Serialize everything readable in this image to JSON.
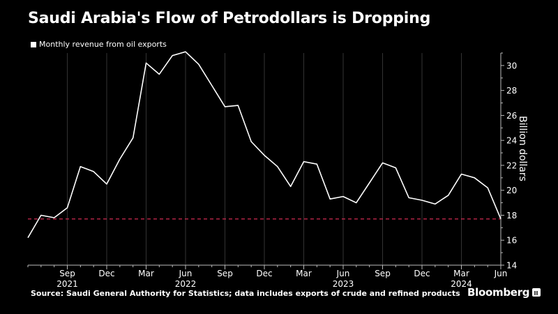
{
  "title": "Saudi Arabia's Flow of Petrodollars is Dropping",
  "legend": {
    "label": "Monthly revenue from oil exports",
    "color": "#ffffff"
  },
  "footer": {
    "source": "Source: Saudi General Authority for Statistics; data includes exports of crude and refined products",
    "brand": "Bloomberg"
  },
  "chart_data": {
    "type": "line",
    "ylabel": "Billion dollars",
    "ylim": [
      14,
      31
    ],
    "yticks": [
      14,
      16,
      18,
      20,
      22,
      24,
      26,
      28,
      30
    ],
    "y_axis_side": "right",
    "grid": "vertical",
    "x_start": "2021-06",
    "x_end": "2024-06",
    "xticks": [
      {
        "label": "Sep",
        "year": "2021",
        "date": "2021-09"
      },
      {
        "label": "Dec",
        "year": "",
        "date": "2021-12"
      },
      {
        "label": "Mar",
        "year": "",
        "date": "2022-03"
      },
      {
        "label": "Jun",
        "year": "2022",
        "date": "2022-06"
      },
      {
        "label": "Sep",
        "year": "",
        "date": "2022-09"
      },
      {
        "label": "Dec",
        "year": "",
        "date": "2022-12"
      },
      {
        "label": "Mar",
        "year": "",
        "date": "2023-03"
      },
      {
        "label": "Jun",
        "year": "2023",
        "date": "2023-06"
      },
      {
        "label": "Sep",
        "year": "",
        "date": "2023-09"
      },
      {
        "label": "Dec",
        "year": "",
        "date": "2023-12"
      },
      {
        "label": "Mar",
        "year": "2024",
        "date": "2024-03"
      },
      {
        "label": "Jun",
        "year": "",
        "date": "2024-06"
      }
    ],
    "series": [
      {
        "name": "Monthly revenue from oil exports",
        "color": "#ffffff",
        "x": [
          "2021-06",
          "2021-07",
          "2021-08",
          "2021-09",
          "2021-10",
          "2021-11",
          "2021-12",
          "2022-01",
          "2022-02",
          "2022-03",
          "2022-04",
          "2022-05",
          "2022-06",
          "2022-07",
          "2022-08",
          "2022-09",
          "2022-10",
          "2022-11",
          "2022-12",
          "2023-01",
          "2023-02",
          "2023-03",
          "2023-04",
          "2023-05",
          "2023-06",
          "2023-07",
          "2023-08",
          "2023-09",
          "2023-10",
          "2023-11",
          "2023-12",
          "2024-01",
          "2024-02",
          "2024-03",
          "2024-04",
          "2024-05",
          "2024-06"
        ],
        "values": [
          16.2,
          18.0,
          17.8,
          18.6,
          21.9,
          21.5,
          20.5,
          22.5,
          24.2,
          30.2,
          29.3,
          30.8,
          31.1,
          30.1,
          28.4,
          26.7,
          26.8,
          23.9,
          22.8,
          21.9,
          20.3,
          22.3,
          22.1,
          19.3,
          19.5,
          19.0,
          20.6,
          22.2,
          21.8,
          19.4,
          19.2,
          18.9,
          19.6,
          21.3,
          21.0,
          20.2,
          17.7
        ]
      }
    ],
    "reference_line": {
      "value": 17.7,
      "color": "#e8315b",
      "style": "dashed"
    }
  }
}
